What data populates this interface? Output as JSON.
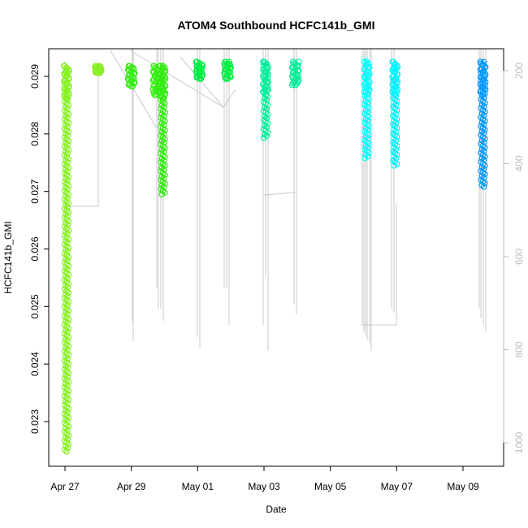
{
  "chart_data": {
    "type": "scatter",
    "title": "ATOM4 Southbound HCFC141b_GMI",
    "xlabel": "Date",
    "ylabel": "HCFC141b_GMI",
    "x_range_days": [
      -0.35,
      12.6
    ],
    "ylim": [
      0.02237,
      0.02953
    ],
    "right_ylim_reversed": [
      1050,
      130
    ],
    "x_ticks": [
      {
        "label": "Apr 27",
        "day": 0
      },
      {
        "label": "Apr 29",
        "day": 2
      },
      {
        "label": "May 01",
        "day": 4
      },
      {
        "label": "May 03",
        "day": 6
      },
      {
        "label": "May 05",
        "day": 8
      },
      {
        "label": "May 07",
        "day": 10
      },
      {
        "label": "May 09",
        "day": 12
      }
    ],
    "y_ticks": [
      {
        "label": "0.023",
        "value": 0.023
      },
      {
        "label": "0.024",
        "value": 0.024
      },
      {
        "label": "0.025",
        "value": 0.025
      },
      {
        "label": "0.026",
        "value": 0.026
      },
      {
        "label": "0.027",
        "value": 0.027
      },
      {
        "label": "0.028",
        "value": 0.028
      },
      {
        "label": "0.029",
        "value": 0.029
      }
    ],
    "right_ticks": [
      {
        "label": "200",
        "value": 200
      },
      {
        "label": "400",
        "value": 400
      },
      {
        "label": "600",
        "value": 600
      },
      {
        "label": "800",
        "value": 800
      },
      {
        "label": "1000",
        "value": 1000
      }
    ],
    "grid": false,
    "legend": "none",
    "marker": "open-circle",
    "pressure_trace_color": "#c8c8c8",
    "series": [
      {
        "day": 0.05,
        "ymin": 0.02248,
        "ymax": 0.02918,
        "color": "#84f21e"
      },
      {
        "day": 1.0,
        "ymin": 0.02906,
        "ymax": 0.02918,
        "color": "#88f020"
      },
      {
        "day": 2.0,
        "ymin": 0.02883,
        "ymax": 0.02918,
        "color": "#33ee10"
      },
      {
        "day": 2.75,
        "ymin": 0.02868,
        "ymax": 0.02918,
        "color": "#33ee10"
      },
      {
        "day": 2.95,
        "ymin": 0.02695,
        "ymax": 0.02918,
        "color": "#30ec10"
      },
      {
        "day": 4.05,
        "ymin": 0.02896,
        "ymax": 0.02925,
        "color": "#00ee44"
      },
      {
        "day": 4.9,
        "ymin": 0.02896,
        "ymax": 0.02925,
        "color": "#00ee44"
      },
      {
        "day": 6.05,
        "ymin": 0.02793,
        "ymax": 0.02925,
        "color": "#00ee99"
      },
      {
        "day": 6.95,
        "ymin": 0.02885,
        "ymax": 0.02925,
        "color": "#00ee99"
      },
      {
        "day": 9.1,
        "ymin": 0.02758,
        "ymax": 0.02925,
        "color": "#00ffff"
      },
      {
        "day": 9.95,
        "ymin": 0.02745,
        "ymax": 0.02925,
        "color": "#00f2ff"
      },
      {
        "day": 12.6,
        "ymin": 0.02708,
        "ymax": 0.02925,
        "color": "#0099ff"
      }
    ]
  }
}
